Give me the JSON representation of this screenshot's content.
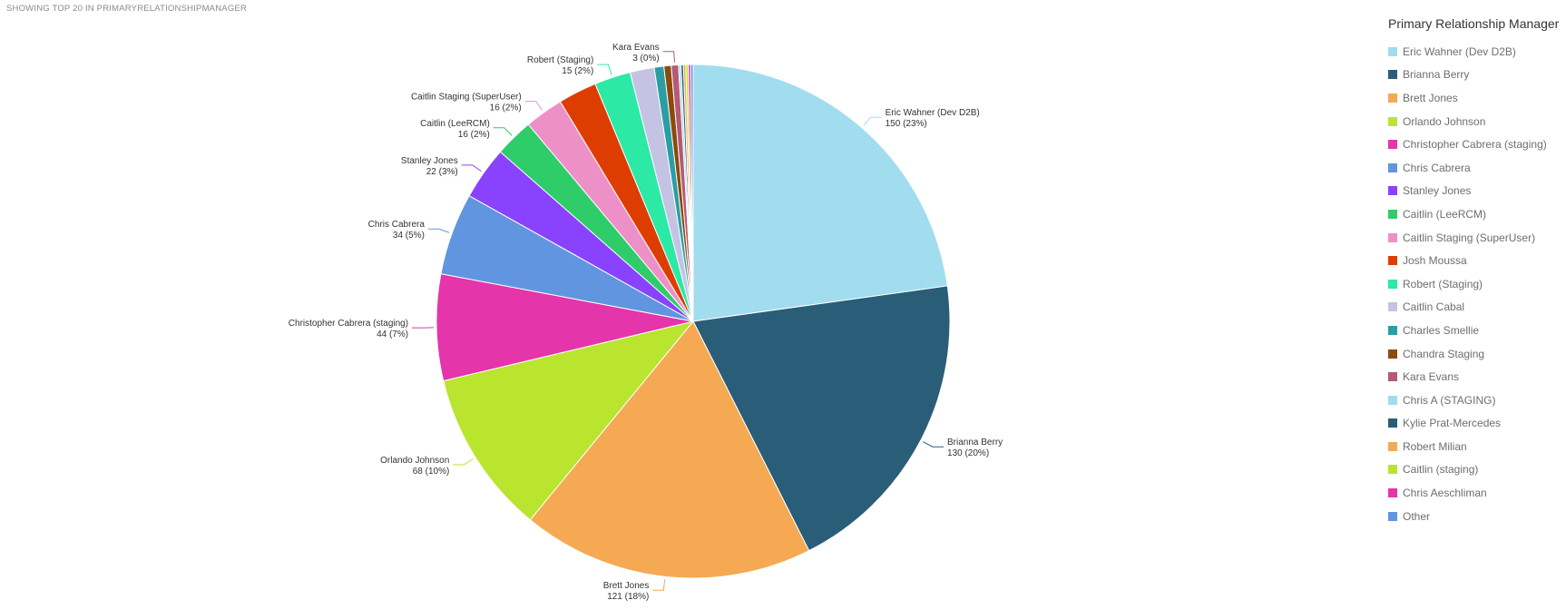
{
  "header": {
    "subtitle": "SHOWING TOP 20 IN PRIMARYRELATIONSHIPMANAGER"
  },
  "legend": {
    "title": "Primary Relationship Manager"
  },
  "chart_data": {
    "type": "pie",
    "title": "",
    "legend_placement": "right",
    "slices": [
      {
        "label": "Eric Wahner (Dev D2B)",
        "value": 150,
        "pct": "23%",
        "color": "#a1dcef",
        "show_label": true
      },
      {
        "label": "Brianna Berry",
        "value": 130,
        "pct": "20%",
        "color": "#2a5d78",
        "show_label": true
      },
      {
        "label": "Brett Jones",
        "value": 121,
        "pct": "18%",
        "color": "#f5a953",
        "show_label": true
      },
      {
        "label": "Orlando Johnson",
        "value": 68,
        "pct": "10%",
        "color": "#b9e52f",
        "show_label": true
      },
      {
        "label": "Christopher Cabrera (staging)",
        "value": 44,
        "pct": "7%",
        "color": "#e535ab",
        "show_label": true
      },
      {
        "label": "Chris Cabrera",
        "value": 34,
        "pct": "5%",
        "color": "#6195e0",
        "show_label": true
      },
      {
        "label": "Stanley Jones",
        "value": 22,
        "pct": "3%",
        "color": "#8943ff",
        "show_label": true
      },
      {
        "label": "Caitlin (LeeRCM)",
        "value": 16,
        "pct": "2%",
        "color": "#2fcc6a",
        "show_label": true
      },
      {
        "label": "Caitlin Staging (SuperUser)",
        "value": 16,
        "pct": "2%",
        "color": "#ee90c8",
        "show_label": true
      },
      {
        "label": "Josh Moussa",
        "value": 16,
        "pct": "2%",
        "color": "#de3d02",
        "show_label": false
      },
      {
        "label": "Robert (Staging)",
        "value": 15,
        "pct": "2%",
        "color": "#2ce9a6",
        "show_label": true
      },
      {
        "label": "Caitlin Cabal",
        "value": 10,
        "pct": "2%",
        "color": "#c4c3e4",
        "show_label": false
      },
      {
        "label": "Charles Smellie",
        "value": 4,
        "pct": "1%",
        "color": "#2a9ea4",
        "show_label": false
      },
      {
        "label": "Chandra Staging",
        "value": 3,
        "pct": "0%",
        "color": "#8c4a0d",
        "show_label": false
      },
      {
        "label": "Kara Evans",
        "value": 3,
        "pct": "0%",
        "color": "#b55974",
        "show_label": true
      },
      {
        "label": "Chris A (STAGING)",
        "value": 1,
        "pct": "0%",
        "color": "#a1dcef",
        "show_label": false
      },
      {
        "label": "Kylie Prat-Mercedes",
        "value": 1,
        "pct": "0%",
        "color": "#2a5d78",
        "show_label": false
      },
      {
        "label": "Robert Milian",
        "value": 1,
        "pct": "0%",
        "color": "#f5a953",
        "show_label": false
      },
      {
        "label": "Caitlin (staging)",
        "value": 1,
        "pct": "0%",
        "color": "#b9e52f",
        "show_label": false
      },
      {
        "label": "Chris Aeschliman",
        "value": 1,
        "pct": "0%",
        "color": "#e535ab",
        "show_label": false
      },
      {
        "label": "Other",
        "value": 1,
        "pct": "0%",
        "color": "#6195e0",
        "show_label": false
      }
    ]
  }
}
